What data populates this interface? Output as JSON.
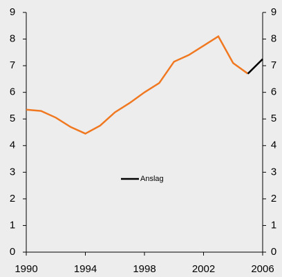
{
  "chart_data": {
    "type": "line",
    "x": [
      1990,
      1991,
      1992,
      1993,
      1994,
      1995,
      1996,
      1997,
      1998,
      1999,
      2000,
      2001,
      2002,
      2003,
      2004,
      2005,
      2006
    ],
    "series": [
      {
        "color": "#f07820",
        "values": [
          5.35,
          5.3,
          5.05,
          4.7,
          4.45,
          4.75,
          5.25,
          5.6,
          6.0,
          6.35,
          7.15,
          7.4,
          7.75,
          8.1,
          7.1,
          6.7,
          null
        ]
      },
      {
        "name": "Anslag",
        "color": "#000000",
        "values": [
          null,
          null,
          null,
          null,
          null,
          null,
          null,
          null,
          null,
          null,
          null,
          null,
          null,
          null,
          null,
          6.7,
          7.25
        ]
      }
    ],
    "xlim": [
      1990,
      2006
    ],
    "xticks": [
      1990,
      1994,
      1998,
      2002,
      2006
    ],
    "ylim": [
      0,
      9
    ],
    "yticks": [
      0,
      1,
      2,
      3,
      4,
      5,
      6,
      7,
      8,
      9
    ],
    "y2lim": [
      0,
      9
    ],
    "y2ticks": [
      0,
      1,
      2,
      3,
      4,
      5,
      6,
      7,
      8,
      9
    ]
  }
}
